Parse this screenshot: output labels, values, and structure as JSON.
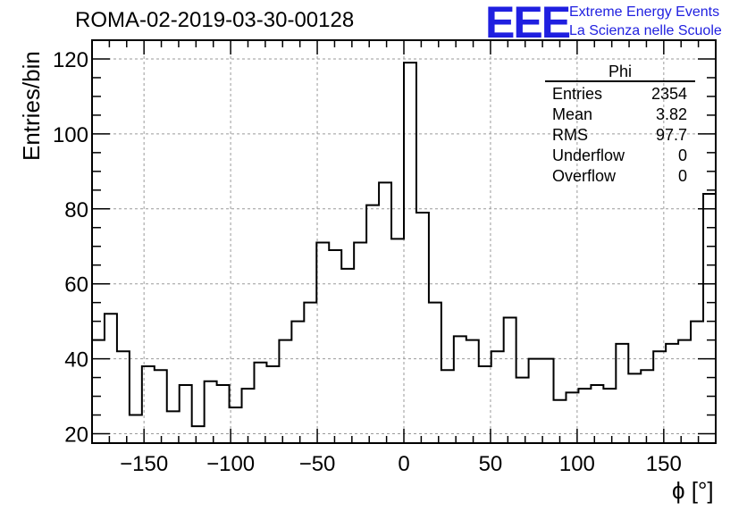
{
  "header": {
    "run_title": "ROMA-02-2019-03-30-00128",
    "logo_letters": "EEE",
    "logo_line1": "Extreme Energy Events",
    "logo_line2": "La Scienza nelle Scuole"
  },
  "stats": {
    "title": "Phi",
    "rows": [
      {
        "label": "Entries",
        "value": "2354"
      },
      {
        "label": "Mean",
        "value": "3.82"
      },
      {
        "label": "RMS",
        "value": "97.7"
      },
      {
        "label": "Underflow",
        "value": "0"
      },
      {
        "label": "Overflow",
        "value": "0"
      }
    ]
  },
  "chart_data": {
    "type": "histogram",
    "title": "ROMA-02-2019-03-30-00128",
    "xlabel": "ϕ [°]",
    "ylabel": "Entries/bin",
    "xlim": [
      -180,
      180
    ],
    "ylim": [
      17.5,
      125
    ],
    "bin_width": 7.2,
    "x_ticks": [
      -150,
      -100,
      -50,
      0,
      50,
      100,
      150
    ],
    "y_ticks": [
      20,
      40,
      60,
      80,
      100,
      120
    ],
    "grid": true,
    "values": [
      45,
      52,
      42,
      25,
      38,
      37,
      26,
      33,
      22,
      34,
      33,
      27,
      32,
      39,
      38,
      45,
      50,
      55,
      71,
      69,
      64,
      71,
      81,
      87,
      72,
      119,
      79,
      55,
      37,
      46,
      45,
      38,
      42,
      51,
      35,
      40,
      40,
      29,
      31,
      32,
      33,
      32,
      44,
      36,
      37,
      42,
      44,
      45,
      50,
      84
    ]
  }
}
